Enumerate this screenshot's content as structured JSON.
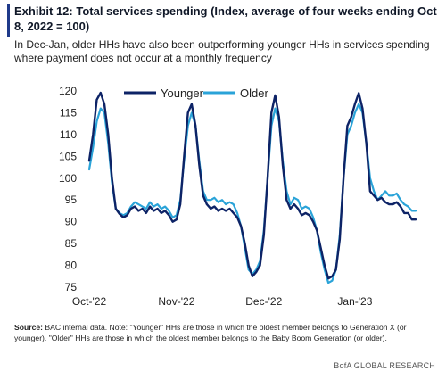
{
  "header": {
    "title": "Exhibit 12: Total services spending (Index, average of four weeks ending Oct 8, 2022 = 100)",
    "subtitle": "In Dec-Jan, older HHs have also been outperforming younger HHs in services spending where payment does not occur at a monthly frequency"
  },
  "colors": {
    "accent": "#1f3a8a",
    "younger": "#0d2366",
    "older": "#2aa3d8"
  },
  "footer": {
    "source_label": "Source:",
    "source_text": "BAC internal data. Note: \"Younger\" HHs are those in which the oldest member belongs to Generation X (or younger). \"Older\" HHs are those in which the oldest member belongs to the Baby Boom Generation (or older).",
    "credit": "BofA GLOBAL RESEARCH"
  },
  "chart_data": {
    "type": "line",
    "title": "",
    "xlabel": "",
    "ylabel": "",
    "ylim": [
      75,
      120
    ],
    "yticks": [
      75,
      80,
      85,
      90,
      95,
      100,
      105,
      110,
      115,
      120
    ],
    "x_tick_labels": [
      {
        "index": 0,
        "label": "Oct-'22"
      },
      {
        "index": 23,
        "label": "Nov-'22"
      },
      {
        "index": 46,
        "label": "Dec-'22"
      },
      {
        "index": 70,
        "label": "Jan-'23"
      }
    ],
    "grid": false,
    "legend": "top-center",
    "series": [
      {
        "name": "Younger",
        "color": "#0d2366",
        "values": [
          104,
          110,
          118,
          119.6,
          117,
          110,
          100,
          93,
          91.8,
          91,
          91.5,
          93,
          93.5,
          92.5,
          93,
          92,
          93.5,
          92.5,
          93,
          92,
          92.5,
          91.5,
          90,
          90.5,
          94,
          105,
          115,
          117,
          112,
          103,
          96,
          94,
          93,
          93.5,
          92.5,
          93,
          92.5,
          93,
          92,
          91,
          89,
          85,
          80,
          77.5,
          78.5,
          80,
          87,
          100,
          115,
          119,
          114,
          103,
          95,
          93,
          94,
          93,
          91.5,
          92,
          91.5,
          90,
          88,
          84,
          80,
          77,
          77.5,
          79,
          86,
          100,
          112,
          114,
          117,
          119.5,
          116,
          108,
          97,
          96,
          95,
          95.5,
          94.5,
          94,
          94,
          94.5,
          93.5,
          92,
          92,
          90.5,
          90.5
        ]
      },
      {
        "name": "Older",
        "color": "#2aa3d8",
        "values": [
          102,
          107,
          113,
          116,
          115,
          108,
          99,
          93,
          92,
          91.5,
          92,
          93.5,
          94.5,
          94,
          93.5,
          93,
          94.5,
          93.5,
          94,
          93,
          93.5,
          92.5,
          91,
          91.5,
          95,
          104,
          112,
          115,
          112,
          104,
          97,
          95,
          95,
          95.5,
          94.5,
          95,
          94,
          94.5,
          94,
          92,
          89,
          84,
          79,
          78,
          79,
          81,
          88,
          100,
          112,
          116,
          113,
          104,
          97,
          94,
          95.5,
          95,
          93,
          93.5,
          93,
          91,
          88,
          83,
          79,
          76,
          76.5,
          79,
          87,
          100,
          110,
          112,
          115,
          117,
          115,
          108,
          100,
          97,
          95,
          96,
          97,
          96,
          96,
          96.5,
          95,
          94,
          93.5,
          92.5,
          92.5
        ]
      }
    ]
  }
}
